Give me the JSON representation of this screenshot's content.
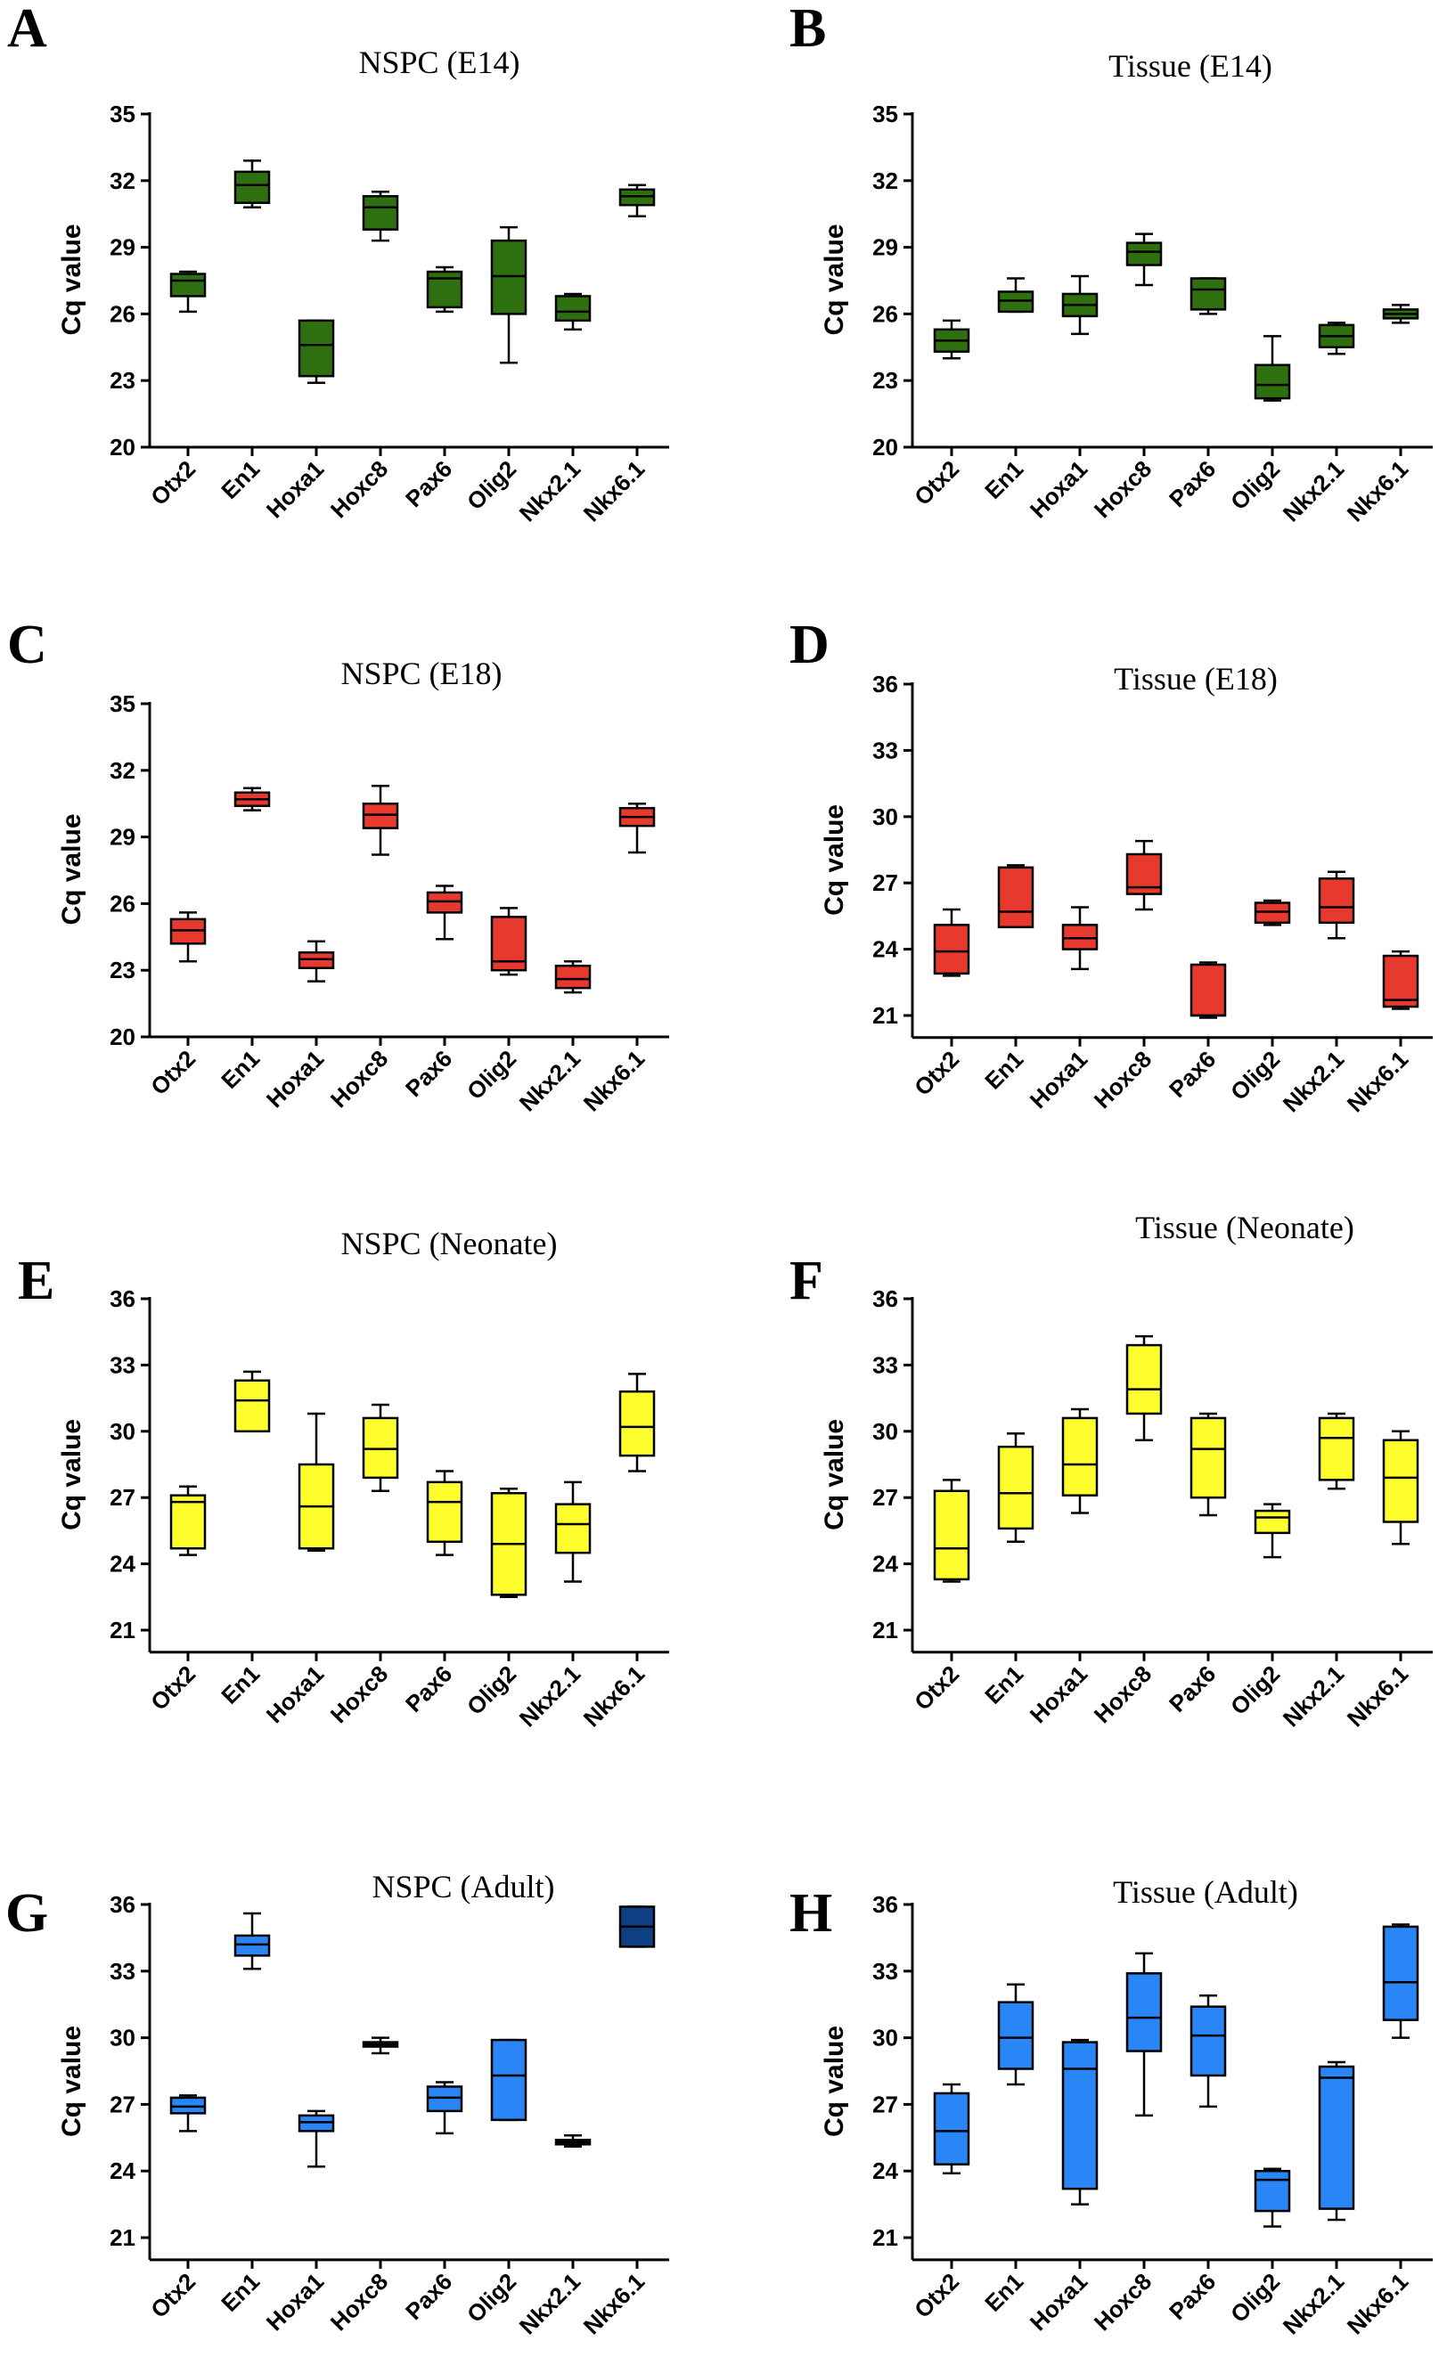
{
  "figure": {
    "panels": [
      {
        "letter": "A",
        "title": "NSPC (E14)",
        "color": "#2e7010"
      },
      {
        "letter": "B",
        "title": "Tissue (E14)",
        "color": "#2e7010"
      },
      {
        "letter": "C",
        "title": "NSPC (E18)",
        "color": "#e8392f"
      },
      {
        "letter": "D",
        "title": "Tissue (E18)",
        "color": "#e8392f"
      },
      {
        "letter": "E",
        "title": "NSPC (Neonate)",
        "color": "#ffff2e"
      },
      {
        "letter": "F",
        "title": "Tissue (Neonate)",
        "color": "#ffff2e"
      },
      {
        "letter": "G",
        "title": "NSPC (Adult)",
        "color": "#2a85f6"
      },
      {
        "letter": "H",
        "title": "Tissue (Adult)",
        "color": "#2a85f6"
      }
    ]
  },
  "chart_data": [
    {
      "panel": "A",
      "type": "boxplot",
      "title": "NSPC (E14)",
      "ylabel": "Cq value",
      "ylim": [
        20,
        35
      ],
      "yticks": [
        20,
        23,
        26,
        29,
        32,
        35
      ],
      "categories": [
        "Otx2",
        "En1",
        "Hoxa1",
        "Hoxc8",
        "Pax6",
        "Olig2",
        "Nkx2.1",
        "Nkx6.1"
      ],
      "boxes": [
        {
          "min": 26.1,
          "q1": 26.8,
          "median": 27.5,
          "q3": 27.8,
          "max": 27.9
        },
        {
          "min": 30.8,
          "q1": 31.0,
          "median": 31.8,
          "q3": 32.4,
          "max": 32.9
        },
        {
          "min": 22.9,
          "q1": 23.2,
          "median": 24.6,
          "q3": 25.7,
          "max": 25.7
        },
        {
          "min": 29.3,
          "q1": 29.8,
          "median": 30.8,
          "q3": 31.3,
          "max": 31.5
        },
        {
          "min": 26.1,
          "q1": 26.3,
          "median": 27.6,
          "q3": 27.9,
          "max": 28.1
        },
        {
          "min": 23.8,
          "q1": 26.0,
          "median": 27.7,
          "q3": 29.3,
          "max": 29.9
        },
        {
          "min": 25.3,
          "q1": 25.7,
          "median": 26.1,
          "q3": 26.8,
          "max": 26.9
        },
        {
          "min": 30.4,
          "q1": 30.9,
          "median": 31.3,
          "q3": 31.6,
          "max": 31.8
        }
      ]
    },
    {
      "panel": "B",
      "type": "boxplot",
      "title": "Tissue (E14)",
      "ylabel": "Cq value",
      "ylim": [
        20,
        35
      ],
      "yticks": [
        20,
        23,
        26,
        29,
        32,
        35
      ],
      "categories": [
        "Otx2",
        "En1",
        "Hoxa1",
        "Hoxc8",
        "Pax6",
        "Olig2",
        "Nkx2.1",
        "Nkx6.1"
      ],
      "boxes": [
        {
          "min": 24.0,
          "q1": 24.3,
          "median": 24.8,
          "q3": 25.3,
          "max": 25.7
        },
        {
          "min": 26.1,
          "q1": 26.1,
          "median": 26.6,
          "q3": 27.0,
          "max": 27.6
        },
        {
          "min": 25.1,
          "q1": 25.9,
          "median": 26.4,
          "q3": 26.9,
          "max": 27.7
        },
        {
          "min": 27.3,
          "q1": 28.2,
          "median": 28.8,
          "q3": 29.2,
          "max": 29.6
        },
        {
          "min": 26.0,
          "q1": 26.2,
          "median": 27.1,
          "q3": 27.6,
          "max": 27.6
        },
        {
          "min": 22.1,
          "q1": 22.2,
          "median": 22.8,
          "q3": 23.7,
          "max": 25.0
        },
        {
          "min": 24.2,
          "q1": 24.5,
          "median": 25.0,
          "q3": 25.5,
          "max": 25.6
        },
        {
          "min": 25.6,
          "q1": 25.8,
          "median": 26.0,
          "q3": 26.2,
          "max": 26.4
        }
      ]
    },
    {
      "panel": "C",
      "type": "boxplot",
      "title": "NSPC (E18)",
      "ylabel": "Cq value",
      "ylim": [
        20,
        35
      ],
      "yticks": [
        20,
        23,
        26,
        29,
        32,
        35
      ],
      "categories": [
        "Otx2",
        "En1",
        "Hoxa1",
        "Hoxc8",
        "Pax6",
        "Olig2",
        "Nkx2.1",
        "Nkx6.1"
      ],
      "boxes": [
        {
          "min": 23.4,
          "q1": 24.2,
          "median": 24.8,
          "q3": 25.3,
          "max": 25.6
        },
        {
          "min": 30.2,
          "q1": 30.4,
          "median": 30.7,
          "q3": 31.0,
          "max": 31.2
        },
        {
          "min": 22.5,
          "q1": 23.1,
          "median": 23.5,
          "q3": 23.8,
          "max": 24.3
        },
        {
          "min": 28.2,
          "q1": 29.4,
          "median": 30.0,
          "q3": 30.5,
          "max": 31.3
        },
        {
          "min": 24.4,
          "q1": 25.6,
          "median": 26.1,
          "q3": 26.5,
          "max": 26.8
        },
        {
          "min": 22.8,
          "q1": 23.0,
          "median": 23.4,
          "q3": 25.4,
          "max": 25.8
        },
        {
          "min": 22.0,
          "q1": 22.2,
          "median": 22.6,
          "q3": 23.2,
          "max": 23.4
        },
        {
          "min": 28.3,
          "q1": 29.5,
          "median": 29.9,
          "q3": 30.3,
          "max": 30.5
        }
      ]
    },
    {
      "panel": "D",
      "type": "boxplot",
      "title": "Tissue (E18)",
      "ylabel": "Cq value",
      "ylim": [
        20,
        36
      ],
      "yticks": [
        21,
        24,
        27,
        30,
        33,
        36
      ],
      "categories": [
        "Otx2",
        "En1",
        "Hoxa1",
        "Hoxc8",
        "Pax6",
        "Olig2",
        "Nkx2.1",
        "Nkx6.1"
      ],
      "boxes": [
        {
          "min": 22.8,
          "q1": 22.9,
          "median": 23.9,
          "q3": 25.1,
          "max": 25.8
        },
        {
          "min": 25.0,
          "q1": 25.0,
          "median": 25.7,
          "q3": 27.7,
          "max": 27.8
        },
        {
          "min": 23.1,
          "q1": 24.0,
          "median": 24.5,
          "q3": 25.1,
          "max": 25.9
        },
        {
          "min": 25.8,
          "q1": 26.5,
          "median": 26.8,
          "q3": 28.3,
          "max": 28.9
        },
        {
          "min": 20.9,
          "q1": 21.0,
          "median": 21.0,
          "q3": 23.3,
          "max": 23.4
        },
        {
          "min": 25.1,
          "q1": 25.2,
          "median": 25.7,
          "q3": 26.1,
          "max": 26.2
        },
        {
          "min": 24.5,
          "q1": 25.2,
          "median": 25.9,
          "q3": 27.2,
          "max": 27.5
        },
        {
          "min": 21.3,
          "q1": 21.4,
          "median": 21.7,
          "q3": 23.7,
          "max": 23.9
        }
      ]
    },
    {
      "panel": "E",
      "type": "boxplot",
      "title": "NSPC (Neonate)",
      "ylabel": "Cq value",
      "ylim": [
        20,
        36
      ],
      "yticks": [
        21,
        24,
        27,
        30,
        33,
        36
      ],
      "categories": [
        "Otx2",
        "En1",
        "Hoxa1",
        "Hoxc8",
        "Pax6",
        "Olig2",
        "Nkx2.1",
        "Nkx6.1"
      ],
      "boxes": [
        {
          "min": 24.4,
          "q1": 24.7,
          "median": 26.8,
          "q3": 27.1,
          "max": 27.5
        },
        {
          "min": 30.0,
          "q1": 30.0,
          "median": 31.4,
          "q3": 32.3,
          "max": 32.7
        },
        {
          "min": 24.6,
          "q1": 24.7,
          "median": 26.6,
          "q3": 28.5,
          "max": 30.8
        },
        {
          "min": 27.3,
          "q1": 27.9,
          "median": 29.2,
          "q3": 30.6,
          "max": 31.2
        },
        {
          "min": 24.4,
          "q1": 25.0,
          "median": 26.8,
          "q3": 27.7,
          "max": 28.2
        },
        {
          "min": 22.5,
          "q1": 22.6,
          "median": 24.9,
          "q3": 27.2,
          "max": 27.4
        },
        {
          "min": 23.2,
          "q1": 24.5,
          "median": 25.8,
          "q3": 26.7,
          "max": 27.7
        },
        {
          "min": 28.2,
          "q1": 28.9,
          "median": 30.2,
          "q3": 31.8,
          "max": 32.6
        }
      ]
    },
    {
      "panel": "F",
      "type": "boxplot",
      "title": "Tissue (Neonate)",
      "ylabel": "Cq value",
      "ylim": [
        20,
        36
      ],
      "yticks": [
        21,
        24,
        27,
        30,
        33,
        36
      ],
      "categories": [
        "Otx2",
        "En1",
        "Hoxa1",
        "Hoxc8",
        "Pax6",
        "Olig2",
        "Nkx2.1",
        "Nkx6.1"
      ],
      "boxes": [
        {
          "min": 23.2,
          "q1": 23.3,
          "median": 24.7,
          "q3": 27.3,
          "max": 27.8
        },
        {
          "min": 25.0,
          "q1": 25.6,
          "median": 27.2,
          "q3": 29.3,
          "max": 29.9
        },
        {
          "min": 26.3,
          "q1": 27.1,
          "median": 28.5,
          "q3": 30.6,
          "max": 31.0
        },
        {
          "min": 29.6,
          "q1": 30.8,
          "median": 31.9,
          "q3": 33.9,
          "max": 34.3
        },
        {
          "min": 26.2,
          "q1": 27.0,
          "median": 29.2,
          "q3": 30.6,
          "max": 30.8
        },
        {
          "min": 24.3,
          "q1": 25.4,
          "median": 26.1,
          "q3": 26.4,
          "max": 26.7
        },
        {
          "min": 27.4,
          "q1": 27.8,
          "median": 29.7,
          "q3": 30.6,
          "max": 30.8
        },
        {
          "min": 24.9,
          "q1": 25.9,
          "median": 27.9,
          "q3": 29.6,
          "max": 30.0
        }
      ]
    },
    {
      "panel": "G",
      "type": "boxplot",
      "title": "NSPC (Adult)",
      "ylabel": "Cq value",
      "ylim": [
        20,
        36
      ],
      "yticks": [
        21,
        24,
        27,
        30,
        33,
        36
      ],
      "categories": [
        "Otx2",
        "En1",
        "Hoxa1",
        "Hoxc8",
        "Pax6",
        "Olig2",
        "Nkx2.1",
        "Nkx6.1"
      ],
      "boxes": [
        {
          "min": 25.8,
          "q1": 26.6,
          "median": 26.9,
          "q3": 27.3,
          "max": 27.4
        },
        {
          "min": 33.1,
          "q1": 33.7,
          "median": 34.2,
          "q3": 34.6,
          "max": 35.6
        },
        {
          "min": 24.2,
          "q1": 25.8,
          "median": 26.2,
          "q3": 26.5,
          "max": 26.7
        },
        {
          "min": 29.3,
          "q1": 29.6,
          "median": 29.7,
          "q3": 29.8,
          "max": 30.0
        },
        {
          "min": 25.7,
          "q1": 26.7,
          "median": 27.3,
          "q3": 27.8,
          "max": 28.0
        },
        {
          "min": 26.3,
          "q1": 26.3,
          "median": 28.3,
          "q3": 29.9,
          "max": 29.9
        },
        {
          "min": 25.1,
          "q1": 25.2,
          "median": 25.3,
          "q3": 25.4,
          "max": 25.6
        },
        {
          "min": 34.1,
          "q1": 34.1,
          "median": 35.0,
          "q3": 35.9,
          "max": 35.9,
          "color": "#0f3f82"
        }
      ]
    },
    {
      "panel": "H",
      "type": "boxplot",
      "title": "Tissue (Adult)",
      "ylabel": "Cq value",
      "ylim": [
        20,
        36
      ],
      "yticks": [
        21,
        24,
        27,
        30,
        33,
        36
      ],
      "categories": [
        "Otx2",
        "En1",
        "Hoxa1",
        "Hoxc8",
        "Pax6",
        "Olig2",
        "Nkx2.1",
        "Nkx6.1"
      ],
      "boxes": [
        {
          "min": 23.9,
          "q1": 24.3,
          "median": 25.8,
          "q3": 27.5,
          "max": 27.9
        },
        {
          "min": 27.9,
          "q1": 28.6,
          "median": 30.0,
          "q3": 31.6,
          "max": 32.4
        },
        {
          "min": 22.5,
          "q1": 23.2,
          "median": 28.6,
          "q3": 29.8,
          "max": 29.9
        },
        {
          "min": 26.5,
          "q1": 29.4,
          "median": 30.9,
          "q3": 32.9,
          "max": 33.8
        },
        {
          "min": 26.9,
          "q1": 28.3,
          "median": 30.1,
          "q3": 31.4,
          "max": 31.9
        },
        {
          "min": 21.5,
          "q1": 22.2,
          "median": 23.6,
          "q3": 24.0,
          "max": 24.1
        },
        {
          "min": 21.8,
          "q1": 22.3,
          "median": 28.2,
          "q3": 28.7,
          "max": 28.9
        },
        {
          "min": 30.0,
          "q1": 30.8,
          "median": 32.5,
          "q3": 35.0,
          "max": 35.1
        }
      ]
    }
  ]
}
